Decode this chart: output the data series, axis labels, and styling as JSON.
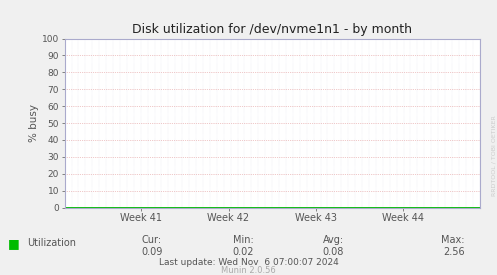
{
  "title": "Disk utilization for /dev/nvme1n1 - by month",
  "ylabel": "% busy",
  "ylim": [
    0,
    100
  ],
  "yticks": [
    0,
    10,
    20,
    30,
    40,
    50,
    60,
    70,
    80,
    90,
    100
  ],
  "xtick_labels": [
    "Week 41",
    "Week 42",
    "Week 43",
    "Week 44"
  ],
  "fig_bg_color": "#f0f0f0",
  "plot_bg_color": "#ffffff",
  "grid_color_h": "#dd8888",
  "grid_color_v": "#aaaacc",
  "line_color": "#00bb00",
  "spine_color": "#aaaacc",
  "text_color": "#555555",
  "title_color": "#222222",
  "legend_label": "Utilization",
  "legend_color": "#00bb00",
  "cur_label": "Cur:",
  "cur_value": "0.09",
  "min_label": "Min:",
  "min_value": "0.02",
  "avg_label": "Avg:",
  "avg_value": "0.08",
  "max_label": "Max:",
  "max_value": "2.56",
  "last_update": "Last update: Wed Nov  6 07:00:07 2024",
  "munin_version": "Munin 2.0.56",
  "watermark": "RRDTOOL / TOBI OETIKER"
}
